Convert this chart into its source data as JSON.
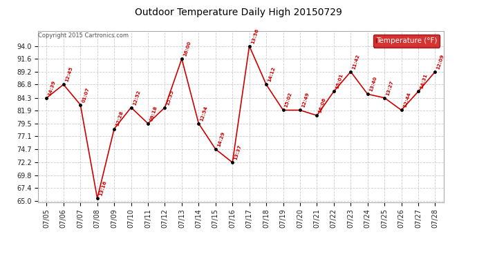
{
  "title": "Outdoor Temperature Daily High 20150729",
  "copyright": "Copyright 2015 Cartronics.com",
  "legend_label": "Temperature (°F)",
  "dates": [
    "07/05",
    "07/06",
    "07/07",
    "07/08",
    "07/09",
    "07/10",
    "07/11",
    "07/12",
    "07/13",
    "07/14",
    "07/15",
    "07/16",
    "07/17",
    "07/18",
    "07/19",
    "07/20",
    "07/21",
    "07/22",
    "07/23",
    "07/24",
    "07/25",
    "07/26",
    "07/27",
    "07/28"
  ],
  "temperatures": [
    84.3,
    86.8,
    83.0,
    65.5,
    78.5,
    82.5,
    79.5,
    82.5,
    91.6,
    79.5,
    74.7,
    72.2,
    94.0,
    86.8,
    82.0,
    82.0,
    81.0,
    85.5,
    89.2,
    85.0,
    84.3,
    82.0,
    85.5,
    89.2
  ],
  "time_labels": [
    "14:39",
    "12:45",
    "01:07",
    "13:16",
    "12:28",
    "12:52",
    "09:18",
    "15:35",
    "16:00",
    "12:54",
    "14:29",
    "13:37",
    "13:56",
    "14:12",
    "15:02",
    "12:49",
    "16:06",
    "15:01",
    "11:42",
    "13:40",
    "13:27",
    "12:44",
    "14:31",
    "12:09"
  ],
  "yticks": [
    65.0,
    67.4,
    69.8,
    72.2,
    74.7,
    77.1,
    79.5,
    81.9,
    84.3,
    86.8,
    89.2,
    91.6,
    94.0
  ],
  "ymin": 65.0,
  "ymax": 94.0,
  "line_color": "#cc0000",
  "marker_color": "#000000",
  "label_color": "#cc0000",
  "bg_color": "#ffffff",
  "grid_color": "#cccccc",
  "title_color": "#000000",
  "copyright_color": "#555555",
  "legend_bg": "#cc0000",
  "legend_text_color": "#ffffff",
  "border_color": "#aaaaaa"
}
